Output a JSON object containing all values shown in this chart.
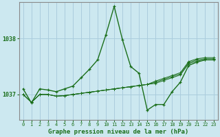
{
  "title": "Graphe pression niveau de la mer (hPa)",
  "background_color": "#cce8f0",
  "grid_color": "#aaccdd",
  "line_color": "#1a6e1a",
  "spine_color": "#888888",
  "xlim": [
    -0.5,
    23.5
  ],
  "ylim": [
    1036.55,
    1038.65
  ],
  "yticks": [
    1037,
    1038
  ],
  "xticks": [
    0,
    1,
    2,
    3,
    4,
    5,
    6,
    7,
    8,
    9,
    10,
    11,
    12,
    13,
    14,
    15,
    16,
    17,
    18,
    19,
    20,
    21,
    22,
    23
  ],
  "series": {
    "spike": [
      1037.1,
      1036.85,
      1037.1,
      1037.08,
      1037.05,
      1037.1,
      1037.15,
      1037.3,
      1037.45,
      1037.62,
      1038.07,
      1038.58,
      1037.98,
      1037.5,
      1037.38,
      1036.72,
      1036.82,
      1036.82,
      1037.05,
      1037.22,
      1037.52,
      1037.58,
      1037.62,
      1037.62
    ],
    "flat1": [
      1037.0,
      1036.86,
      1037.0,
      1037.0,
      1036.97,
      1036.98,
      1037.0,
      1037.02,
      1037.04,
      1037.06,
      1037.08,
      1037.1,
      1037.12,
      1037.14,
      1037.16,
      1037.18,
      1037.2,
      1037.25,
      1037.3,
      1037.35,
      1037.55,
      1037.6,
      1037.62,
      1037.62
    ],
    "flat2": [
      1037.0,
      1036.86,
      1037.0,
      1037.0,
      1036.97,
      1036.98,
      1037.0,
      1037.02,
      1037.04,
      1037.06,
      1037.08,
      1037.1,
      1037.12,
      1037.14,
      1037.16,
      1037.18,
      1037.22,
      1037.27,
      1037.32,
      1037.37,
      1037.57,
      1037.62,
      1037.64,
      1037.64
    ],
    "flat3": [
      1037.0,
      1036.86,
      1037.0,
      1037.0,
      1036.97,
      1036.98,
      1037.0,
      1037.02,
      1037.04,
      1037.06,
      1037.08,
      1037.1,
      1037.12,
      1037.14,
      1037.16,
      1037.18,
      1037.24,
      1037.29,
      1037.34,
      1037.39,
      1037.59,
      1037.64,
      1037.66,
      1037.66
    ]
  }
}
